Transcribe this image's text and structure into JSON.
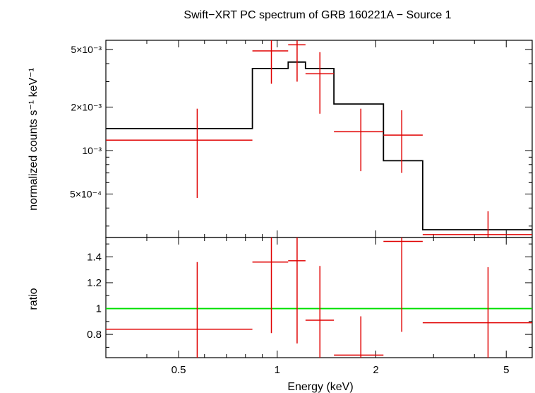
{
  "chart_data": {
    "type": "scatter",
    "title": "Swift−XRT PC spectrum of GRB 160221A − Source 1",
    "xlabel": "Energy (keV)",
    "x_scale": "log",
    "xlim": [
      0.3,
      6.0
    ],
    "x_ticks": [
      {
        "value": 0.5,
        "label": "0.5"
      },
      {
        "value": 1,
        "label": "1"
      },
      {
        "value": 2,
        "label": "2"
      },
      {
        "value": 5,
        "label": "5"
      }
    ],
    "top_panel": {
      "ylabel": "normalized counts s⁻¹ keV⁻¹",
      "y_scale": "log",
      "ylim": [
        0.00025,
        0.0058
      ],
      "y_ticks": [
        {
          "value": 0.005,
          "label": "5×10⁻³"
        },
        {
          "value": 0.002,
          "label": "2×10⁻³"
        },
        {
          "value": 0.001,
          "label": "10⁻³"
        },
        {
          "value": 0.0005,
          "label": "5×10⁻⁴"
        }
      ],
      "data": [
        {
          "x": 0.57,
          "xlo": 0.3,
          "xhi": 0.84,
          "y": 0.00118,
          "ylo": 0.00047,
          "yhi": 0.00195
        },
        {
          "x": 0.96,
          "xlo": 0.84,
          "xhi": 1.08,
          "y": 0.0049,
          "ylo": 0.0029,
          "yhi": 0.0058
        },
        {
          "x": 1.15,
          "xlo": 1.08,
          "xhi": 1.22,
          "y": 0.0054,
          "ylo": 0.003,
          "yhi": 0.0058
        },
        {
          "x": 1.35,
          "xlo": 1.22,
          "xhi": 1.49,
          "y": 0.0034,
          "ylo": 0.0018,
          "yhi": 0.0048
        },
        {
          "x": 1.8,
          "xlo": 1.49,
          "xhi": 2.11,
          "y": 0.00135,
          "ylo": 0.00072,
          "yhi": 0.00195
        },
        {
          "x": 2.4,
          "xlo": 2.11,
          "xhi": 2.78,
          "y": 0.00128,
          "ylo": 0.0007,
          "yhi": 0.0019
        },
        {
          "x": 4.4,
          "xlo": 2.78,
          "xhi": 6.0,
          "y": 0.000262,
          "ylo": 0.00025,
          "yhi": 0.00038
        }
      ],
      "model_steps": [
        {
          "x0": 0.3,
          "x1": 0.84,
          "y": 0.00142
        },
        {
          "x0": 0.84,
          "x1": 1.08,
          "y": 0.0037
        },
        {
          "x0": 1.08,
          "x1": 1.22,
          "y": 0.0041
        },
        {
          "x0": 1.22,
          "x1": 1.49,
          "y": 0.0037
        },
        {
          "x0": 1.49,
          "x1": 2.11,
          "y": 0.0021
        },
        {
          "x0": 2.11,
          "x1": 2.78,
          "y": 0.00085
        },
        {
          "x0": 2.78,
          "x1": 6.0,
          "y": 0.000283
        }
      ]
    },
    "bottom_panel": {
      "ylabel": "ratio",
      "ylim": [
        0.62,
        1.55
      ],
      "y_ticks": [
        {
          "value": 0.8,
          "label": "0.8"
        },
        {
          "value": 1.0,
          "label": "1"
        },
        {
          "value": 1.2,
          "label": "1.2"
        },
        {
          "value": 1.4,
          "label": "1.4"
        }
      ],
      "reference": 1.0,
      "data": [
        {
          "x": 0.57,
          "xlo": 0.3,
          "xhi": 0.84,
          "y": 0.84,
          "ylo": 0.34,
          "yhi": 1.36
        },
        {
          "x": 0.96,
          "xlo": 0.84,
          "xhi": 1.08,
          "y": 1.36,
          "ylo": 0.81,
          "yhi": 1.55
        },
        {
          "x": 1.15,
          "xlo": 1.08,
          "xhi": 1.22,
          "y": 1.37,
          "ylo": 0.73,
          "yhi": 1.55
        },
        {
          "x": 1.35,
          "xlo": 1.22,
          "xhi": 1.49,
          "y": 0.91,
          "ylo": 0.49,
          "yhi": 1.33
        },
        {
          "x": 1.8,
          "xlo": 1.49,
          "xhi": 2.11,
          "y": 0.64,
          "ylo": 0.34,
          "yhi": 0.94
        },
        {
          "x": 2.4,
          "xlo": 2.11,
          "xhi": 2.78,
          "y": 1.52,
          "ylo": 0.82,
          "yhi": 1.55
        },
        {
          "x": 4.4,
          "xlo": 2.78,
          "xhi": 6.0,
          "y": 0.89,
          "ylo": 0.45,
          "yhi": 1.32
        }
      ]
    },
    "colors": {
      "data": "#e00000",
      "model": "#000000",
      "reference": "#00e000",
      "axes": "#000000"
    }
  }
}
